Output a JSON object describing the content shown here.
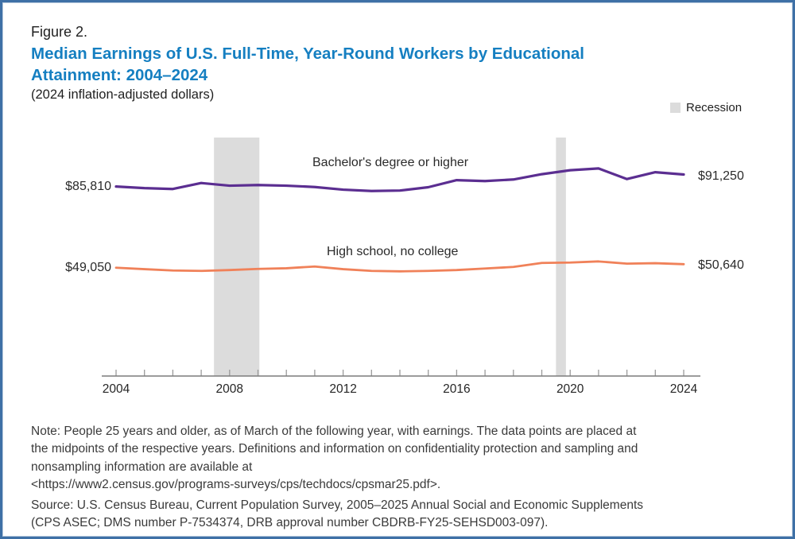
{
  "figure": {
    "label": "Figure 2.",
    "title_lines": [
      "Median Earnings of U.S. Full-Time, Year-Round Workers by Educational",
      "Attainment: 2004–2024"
    ],
    "subtitle": "(2024 inflation-adjusted dollars)"
  },
  "legend": {
    "label": "Recession"
  },
  "colors": {
    "title_blue": "#157fc1",
    "bachelor_line": "#5b2e91",
    "high_school_line": "#f08159",
    "recession_band": "#dcdcdc",
    "axis": "#7c7c7c",
    "frame_border": "#3e70a6"
  },
  "chart_data": {
    "type": "line",
    "title": "Median Earnings of U.S. Full-Time, Year-Round Workers by Educational Attainment: 2004–2024",
    "subtitle": "(2024 inflation-adjusted dollars)",
    "units": "2024 inflation-adjusted dollars",
    "x": [
      2004,
      2005,
      2006,
      2007,
      2008,
      2009,
      2010,
      2011,
      2012,
      2013,
      2014,
      2015,
      2016,
      2017,
      2018,
      2019,
      2020,
      2021,
      2022,
      2023,
      2024
    ],
    "x_tick_labels": [
      "2004",
      "2008",
      "2012",
      "2016",
      "2020",
      "2024"
    ],
    "series": [
      {
        "name": "Bachelor's degree or higher",
        "color": "#5b2e91",
        "first_point_label": "$85,810",
        "last_point_label": "$91,250",
        "values": [
          85810,
          85100,
          84700,
          87400,
          86200,
          86500,
          86200,
          85600,
          84400,
          83800,
          84000,
          85500,
          88700,
          88300,
          89000,
          91400,
          93200,
          94000,
          89200,
          92300,
          91250
        ]
      },
      {
        "name": "High school, no college",
        "color": "#f08159",
        "first_point_label": "$49,050",
        "last_point_label": "$50,640",
        "values": [
          49050,
          48400,
          47800,
          47600,
          48000,
          48500,
          48800,
          49600,
          48400,
          47600,
          47400,
          47600,
          48000,
          48700,
          49400,
          51200,
          51400,
          51900,
          50900,
          51100,
          50640
        ]
      }
    ],
    "recession_bands_years": [
      {
        "start": 2007.45,
        "end": 2009.05
      },
      {
        "start": 2019.5,
        "end": 2019.85
      }
    ],
    "legend": [
      {
        "label": "Recession",
        "swatch": "#dcdcdc"
      }
    ],
    "ylim": [
      0,
      111600
    ],
    "grid": false,
    "legend_position": "top-right"
  },
  "notes": {
    "note_lines": [
      "Note: People 25 years and older, as of March of the following year, with earnings. The data points are placed at",
      "the midpoints of the respective years. Definitions and information on confidentiality protection and sampling and",
      "nonsampling information are available at",
      "<https://www2.census.gov/programs-surveys/cps/techdocs/cpsmar25.pdf>."
    ],
    "source_lines": [
      "Source: U.S. Census Bureau, Current Population Survey, 2005–2025 Annual Social and Economic Supplements",
      "(CPS ASEC; DMS number P-7534374, DRB approval number CBDRB-FY25-SEHSD003-097)."
    ]
  }
}
